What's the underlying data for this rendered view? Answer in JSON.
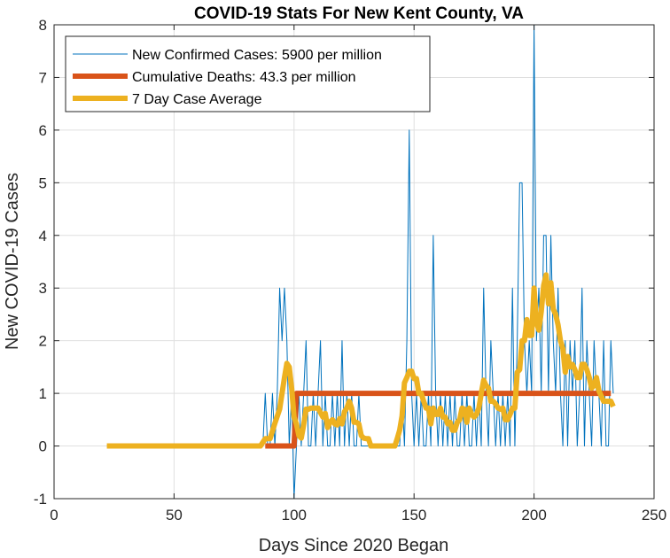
{
  "chart_data": {
    "type": "line",
    "title": "COVID-19 Stats For New Kent County, VA",
    "xlabel": "Days Since 2020 Began",
    "ylabel": "New COVID-19 Cases",
    "xlim": [
      0,
      250
    ],
    "ylim": [
      -1,
      8
    ],
    "xticks": [
      0,
      50,
      100,
      150,
      200,
      250
    ],
    "yticks": [
      -1,
      0,
      1,
      2,
      3,
      4,
      5,
      6,
      7,
      8
    ],
    "grid": true,
    "legend_position": "top-left",
    "series": [
      {
        "name": "New Confirmed Cases: 5900 per million",
        "color": "#0072BD",
        "width": "thin",
        "x": [
          22,
          30,
          40,
          50,
          60,
          70,
          80,
          86,
          87,
          88,
          89,
          90,
          91,
          92,
          93,
          94,
          95,
          96,
          97,
          98,
          99,
          100,
          101,
          102,
          103,
          104,
          105,
          106,
          107,
          108,
          109,
          110,
          111,
          112,
          113,
          114,
          115,
          116,
          117,
          118,
          119,
          120,
          121,
          122,
          123,
          124,
          125,
          126,
          127,
          128,
          129,
          130,
          135,
          140,
          143,
          144,
          145,
          146,
          147,
          148,
          149,
          150,
          151,
          152,
          153,
          154,
          155,
          156,
          157,
          158,
          159,
          160,
          161,
          162,
          163,
          164,
          165,
          166,
          167,
          168,
          169,
          170,
          171,
          172,
          173,
          174,
          175,
          176,
          177,
          178,
          179,
          180,
          181,
          182,
          183,
          184,
          185,
          186,
          187,
          188,
          189,
          190,
          191,
          192,
          193,
          194,
          195,
          196,
          197,
          198,
          199,
          200,
          201,
          202,
          203,
          204,
          205,
          206,
          207,
          208,
          209,
          210,
          211,
          212,
          213,
          214,
          215,
          216,
          217,
          218,
          219,
          220,
          221,
          222,
          223,
          224,
          225,
          226,
          227,
          228,
          229,
          230,
          231,
          232,
          233
        ],
        "y": [
          0,
          0,
          0,
          0,
          0,
          0,
          0,
          0,
          0,
          1,
          0,
          0,
          1,
          0,
          1,
          3,
          2,
          3,
          2,
          0,
          1,
          -1,
          0,
          1,
          0,
          1,
          2,
          0,
          0,
          1,
          0,
          1,
          2,
          0,
          1,
          0,
          0,
          1,
          0,
          1,
          0,
          2,
          0,
          1,
          0,
          1,
          0,
          0,
          1,
          0,
          0,
          0,
          0,
          0,
          0,
          0,
          1,
          0,
          2,
          6,
          1,
          0,
          1,
          0,
          1,
          0,
          0,
          1,
          0,
          4,
          1,
          0,
          1,
          0,
          1,
          0,
          1,
          0,
          1,
          0,
          0,
          1,
          0,
          1,
          0,
          0,
          1,
          0,
          1,
          0,
          3,
          1,
          0,
          2,
          1,
          0,
          1,
          0,
          1,
          0,
          1,
          0,
          3,
          0,
          2,
          5,
          5,
          2,
          1,
          2,
          1,
          8,
          2,
          3,
          1,
          4,
          4,
          1,
          4,
          2,
          1,
          3,
          1,
          0,
          2,
          0,
          2,
          1,
          2,
          0,
          1,
          3,
          0,
          2,
          1,
          0,
          2,
          1,
          1,
          0,
          2,
          0,
          0,
          2,
          1
        ]
      },
      {
        "name": "Cumulative Deaths: 43.3 per million",
        "color": "#D95319",
        "width": "thick",
        "x": [
          88,
          99,
          100,
          101,
          232
        ],
        "y": [
          0,
          0,
          0,
          1,
          1
        ]
      },
      {
        "name": "7 Day Case Average",
        "color": "#EDB120",
        "width": "thick",
        "x": [
          22,
          30,
          40,
          50,
          60,
          70,
          80,
          86,
          88,
          90,
          92,
          94,
          96,
          97,
          98,
          99,
          100,
          101,
          102,
          103,
          104,
          105,
          106,
          107,
          108,
          110,
          112,
          113,
          114,
          115,
          116,
          117,
          118,
          119,
          120,
          121,
          122,
          123,
          124,
          125,
          126,
          127,
          128,
          129,
          130,
          131,
          132,
          133,
          135,
          138,
          140,
          142,
          143,
          144,
          145,
          146,
          147,
          148,
          149,
          150,
          151,
          152,
          153,
          154,
          155,
          156,
          157,
          158,
          159,
          160,
          161,
          162,
          163,
          164,
          165,
          166,
          167,
          168,
          169,
          170,
          171,
          172,
          173,
          174,
          175,
          176,
          177,
          178,
          179,
          180,
          181,
          182,
          183,
          184,
          185,
          186,
          187,
          188,
          189,
          190,
          191,
          192,
          193,
          194,
          195,
          196,
          197,
          198,
          199,
          200,
          201,
          202,
          203,
          204,
          205,
          206,
          207,
          208,
          209,
          210,
          211,
          212,
          213,
          214,
          215,
          216,
          217,
          218,
          219,
          220,
          221,
          222,
          223,
          224,
          225,
          226,
          227,
          228,
          229,
          230,
          231,
          232,
          233
        ],
        "y": [
          0,
          0,
          0,
          0,
          0,
          0,
          0,
          0,
          0.14,
          0.14,
          0.43,
          0.7,
          1.3,
          1.57,
          1.5,
          1.1,
          0.55,
          0.42,
          0.2,
          0.15,
          0.4,
          0.7,
          0.7,
          0.72,
          0.72,
          0.72,
          0.55,
          0.62,
          0.35,
          0.45,
          0.5,
          0.42,
          0.4,
          0.52,
          0.42,
          0.65,
          0.72,
          0.85,
          0.72,
          0.45,
          0.45,
          0.42,
          0.2,
          0.15,
          0.14,
          0.14,
          0,
          0,
          0,
          0,
          0,
          0,
          0.14,
          0.3,
          0.57,
          1.2,
          1.3,
          1.42,
          1.42,
          1.28,
          1.28,
          1.0,
          1.0,
          0.85,
          0.72,
          0.72,
          0.42,
          0.72,
          0.6,
          0.6,
          0.72,
          0.55,
          0.55,
          0.42,
          0.45,
          0.3,
          0.3,
          0.45,
          0.5,
          0.72,
          0.7,
          0.45,
          0.72,
          0.6,
          0.55,
          0.6,
          0.72,
          1.0,
          1.25,
          1.15,
          1.1,
          0.85,
          0.85,
          0.8,
          0.72,
          0.7,
          0.72,
          0.5,
          0.5,
          0.6,
          0.72,
          0.72,
          1.4,
          1.45,
          2.0,
          2.0,
          2.4,
          2.1,
          2.1,
          3.0,
          2.35,
          2.2,
          2.55,
          3.05,
          3.25,
          2.7,
          3.1,
          2.6,
          2.5,
          2.3,
          2.0,
          1.85,
          1.4,
          1.7,
          1.5,
          1.55,
          1.45,
          1.3,
          1.3,
          1.55,
          1.55,
          1.45,
          1.3,
          1.1,
          1.15,
          1.3,
          1.05,
          0.95,
          0.85,
          0.85,
          0.85,
          0.85,
          0.75
        ]
      }
    ]
  }
}
